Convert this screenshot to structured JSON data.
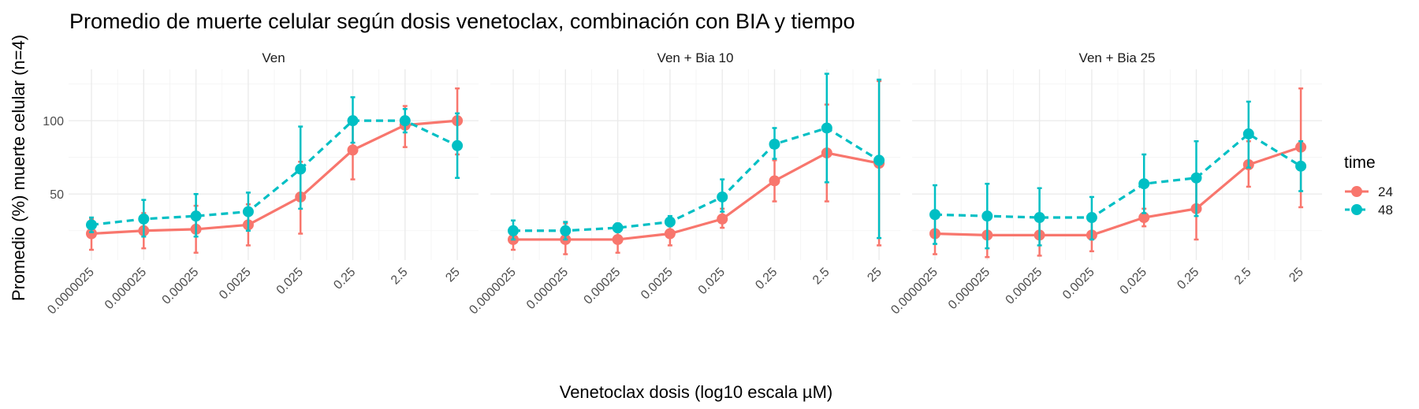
{
  "chart_data": {
    "type": "line",
    "title": "Promedio de muerte celular según dosis venetoclax, combinación con BIA y tiempo",
    "xlabel": "Venetoclax dosis (log10 escala µM)",
    "ylabel": "Promedio (%) muerte celular (n=4)",
    "categories": [
      "0.0000025",
      "0.000025",
      "0.00025",
      "0.0025",
      "0.025",
      "0.25",
      "2.5",
      "25"
    ],
    "yticks": [
      50,
      100
    ],
    "ylim": [
      5,
      135
    ],
    "grid": true,
    "legend": {
      "title": "time",
      "position": "right",
      "entries": [
        {
          "label": "24",
          "color": "#F8766D",
          "linestyle": "solid"
        },
        {
          "label": "48",
          "color": "#00BFC4",
          "linestyle": "dashed"
        }
      ]
    },
    "panels": [
      {
        "label": "Ven",
        "series": [
          {
            "name": "24",
            "values": [
              23,
              25,
              26,
              29,
              48,
              80,
              97,
              100
            ],
            "lower": [
              12,
              13,
              10,
              15,
              23,
              60,
              82,
              77
            ],
            "upper": [
              33,
              37,
              42,
              43,
              72,
              100,
              110,
              122
            ]
          },
          {
            "name": "48",
            "values": [
              29,
              33,
              35,
              38,
              67,
              100,
              100,
              83
            ],
            "lower": [
              24,
              21,
              21,
              25,
              40,
              85,
              92,
              61
            ],
            "upper": [
              34,
              46,
              50,
              51,
              96,
              116,
              108,
              105
            ]
          }
        ]
      },
      {
        "label": "Ven + Bia 10",
        "series": [
          {
            "name": "24",
            "values": [
              19,
              19,
              19,
              23,
              33,
              59,
              78,
              71
            ],
            "lower": [
              12,
              9,
              10,
              15,
              27,
              45,
              45,
              15
            ],
            "upper": [
              27,
              30,
              28,
              32,
              40,
              73,
              111,
              127
            ]
          },
          {
            "name": "48",
            "values": [
              25,
              25,
              27,
              31,
              48,
              84,
              95,
              73
            ],
            "lower": [
              19,
              19,
              24,
              28,
              38,
              74,
              58,
              20
            ],
            "upper": [
              32,
              31,
              30,
              35,
              60,
              95,
              132,
              128
            ]
          }
        ]
      },
      {
        "label": "Ven + Bia 25",
        "series": [
          {
            "name": "24",
            "values": [
              23,
              22,
              22,
              22,
              34,
              40,
              70,
              82
            ],
            "lower": [
              9,
              7,
              8,
              11,
              28,
              19,
              55,
              41
            ],
            "upper": [
              36,
              36,
              35,
              34,
              40,
              61,
              86,
              122
            ]
          },
          {
            "name": "48",
            "values": [
              36,
              35,
              34,
              34,
              57,
              61,
              91,
              69
            ],
            "lower": [
              16,
              13,
              15,
              19,
              37,
              35,
              68,
              52
            ],
            "upper": [
              56,
              57,
              54,
              48,
              77,
              86,
              113,
              86
            ]
          }
        ]
      }
    ]
  }
}
